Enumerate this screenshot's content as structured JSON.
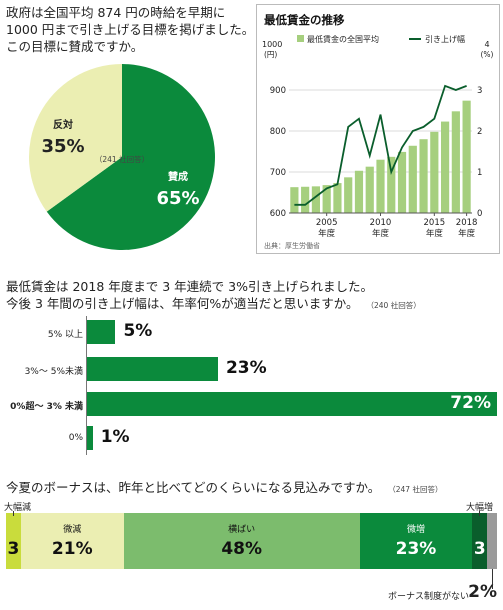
{
  "colors": {
    "dark_green": "#0b8a3c",
    "light_green": "#a6cf7e",
    "pale_yellow": "#ebeeb2",
    "mid_green": "#7cbc6d",
    "lime": "#c9dc3c",
    "deep_green": "#0a5e2c",
    "gray": "#9a9a9a"
  },
  "q1": {
    "question": [
      "政府は全国平均 874 円の時給を早期に",
      "1000 円まで引き上げる目標を掲げました。",
      "この目標に賛成ですか。"
    ],
    "respondents": "（241 社回答）",
    "chart_data": {
      "type": "pie",
      "slices": [
        {
          "label": "賛成",
          "value": 65,
          "value_text": "65%",
          "color": "#0b8a3c"
        },
        {
          "label": "反対",
          "value": 35,
          "value_text": "35%",
          "color": "#ebeeb2"
        }
      ]
    }
  },
  "trend": {
    "title": "最低賃金の推移",
    "legend_bar": "最低賃金の全国平均",
    "legend_line": "引き上げ幅",
    "left_unit_top": "1000",
    "left_unit": "(円)",
    "right_unit_top": "4",
    "right_unit": "(%)",
    "source": "出典：厚生労働省",
    "chart_data": {
      "type": "bar+line",
      "x": [
        2002,
        2003,
        2004,
        2005,
        2006,
        2007,
        2008,
        2009,
        2010,
        2011,
        2012,
        2013,
        2014,
        2015,
        2016,
        2017,
        2018
      ],
      "x_tick_values": [
        2005,
        2010,
        2015,
        2018
      ],
      "x_tick_labels": [
        "2005",
        "2010",
        "2015",
        "2018"
      ],
      "x_tick_sub": "年度",
      "bar_series": {
        "name": "最低賃金の全国平均",
        "values": [
          663,
          664,
          665,
          668,
          673,
          687,
          703,
          713,
          730,
          737,
          749,
          764,
          780,
          798,
          823,
          848,
          874
        ]
      },
      "line_series": {
        "name": "引き上げ幅",
        "values": [
          0.2,
          0.2,
          0.4,
          0.6,
          0.7,
          2.1,
          2.3,
          1.4,
          2.4,
          1.0,
          1.6,
          2.0,
          2.1,
          2.3,
          3.1,
          3.0,
          3.1
        ]
      },
      "y_left": {
        "min": 600,
        "max": 1000,
        "ticks": [
          600,
          700,
          800,
          900
        ]
      },
      "y_right": {
        "min": 0,
        "max": 4,
        "ticks": [
          0,
          1,
          2,
          3
        ]
      }
    }
  },
  "q2": {
    "question": [
      "最低賃金は 2018 年度まで 3 年連続で 3%引き上げられました。",
      "今後 3 年間の引き上げ幅は、年率何%が適当だと思いますか。"
    ],
    "respondents": "（240 社回答）",
    "chart_data": {
      "type": "bar",
      "orientation": "horizontal",
      "categories": [
        "5% 以上",
        "3%～ 5%未満",
        "0%超～ 3% 未満",
        "0%"
      ],
      "values": [
        5,
        23,
        72,
        1
      ],
      "value_texts": [
        "5%",
        "23%",
        "72%",
        "1%"
      ],
      "highlight": "0%超～ 3% 未満"
    }
  },
  "q3": {
    "question": "今夏のボーナスは、昨年と比べてどのくらいになる見込みですか。",
    "respondents": "（247 社回答）",
    "chart_data": {
      "type": "bar",
      "orientation": "stacked-horizontal",
      "segments": [
        {
          "label": "大幅減",
          "value": 3,
          "value_text": "3",
          "color": "#c9dc3c"
        },
        {
          "label": "微減",
          "value": 21,
          "value_text": "21%",
          "color": "#ebeeb2"
        },
        {
          "label": "横ばい",
          "value": 48,
          "value_text": "48%",
          "color": "#7cbc6d"
        },
        {
          "label": "微増",
          "value": 23,
          "value_text": "23%",
          "color": "#0b8a3c"
        },
        {
          "label": "大幅増",
          "value": 3,
          "value_text": "3",
          "color": "#0a5e2c"
        },
        {
          "label": "ボーナス制度がない",
          "value": 2,
          "value_text": "2%",
          "color": "#9a9a9a"
        }
      ]
    }
  }
}
